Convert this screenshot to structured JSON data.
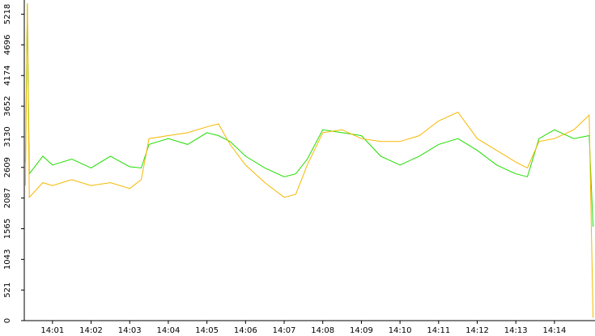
{
  "chart_data": {
    "type": "line",
    "x": [
      840.3,
      840.35,
      840.4,
      840.75,
      841.0,
      841.5,
      842.0,
      842.5,
      843.0,
      843.3,
      843.5,
      844.0,
      844.5,
      845.0,
      845.3,
      845.6,
      846.0,
      846.5,
      847.0,
      847.3,
      847.6,
      848.0,
      848.5,
      849.0,
      849.5,
      850.0,
      850.5,
      851.0,
      851.5,
      852.0,
      852.5,
      853.0,
      853.3,
      853.6,
      854.0,
      854.5,
      854.9,
      855.0
    ],
    "series": [
      {
        "name": null,
        "color": "#22dd00",
        "values": [
          2700,
          5400,
          2500,
          2800,
          2650,
          2750,
          2600,
          2800,
          2620,
          2600,
          3000,
          3100,
          3000,
          3200,
          3150,
          3050,
          2800,
          2600,
          2450,
          2500,
          2750,
          3250,
          3200,
          3150,
          2800,
          2650,
          2800,
          3000,
          3100,
          2900,
          2650,
          2500,
          2450,
          3100,
          3250,
          3100,
          3150,
          1600
        ]
      },
      {
        "name": null,
        "color": "#f5b800",
        "values": [
          2300,
          5400,
          2100,
          2350,
          2300,
          2400,
          2300,
          2350,
          2250,
          2400,
          3100,
          3150,
          3200,
          3300,
          3350,
          3000,
          2650,
          2350,
          2100,
          2150,
          2650,
          3200,
          3250,
          3100,
          3050,
          3050,
          3150,
          3400,
          3550,
          3100,
          2900,
          2700,
          2600,
          3050,
          3100,
          3250,
          3500,
          50
        ]
      }
    ],
    "xlim": [
      840.27,
      855.05
    ],
    "xticks": [
      {
        "value": 841,
        "label": "14:01"
      },
      {
        "value": 842,
        "label": "14:02"
      },
      {
        "value": 843,
        "label": "14:03"
      },
      {
        "value": 844,
        "label": "14:04"
      },
      {
        "value": 845,
        "label": "14:05"
      },
      {
        "value": 846,
        "label": "14:06"
      },
      {
        "value": 847,
        "label": "14:07"
      },
      {
        "value": 848,
        "label": "14:08"
      },
      {
        "value": 849,
        "label": "14:09"
      },
      {
        "value": 850,
        "label": "14:10"
      },
      {
        "value": 851,
        "label": "14:11"
      },
      {
        "value": 852,
        "label": "14:12"
      },
      {
        "value": 853,
        "label": "14:13"
      },
      {
        "value": 854,
        "label": "14:14"
      }
    ],
    "ylim": [
      0,
      5460
    ],
    "yticks": [
      0,
      521,
      1043,
      1565,
      2087,
      2609,
      3130,
      3652,
      4174,
      4696,
      5218
    ],
    "grid": false
  }
}
